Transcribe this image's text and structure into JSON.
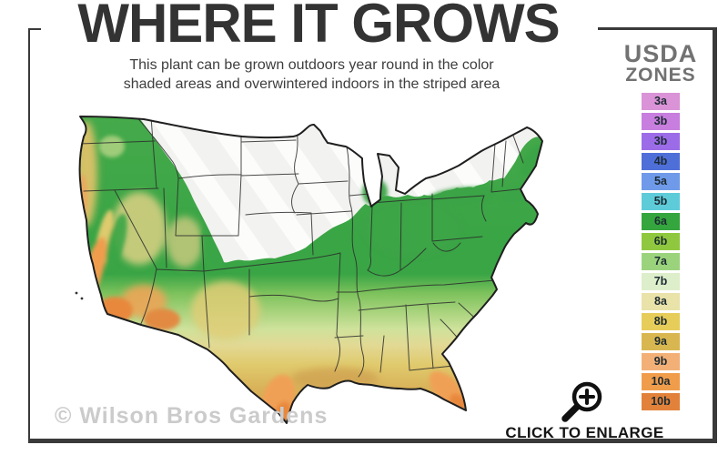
{
  "title": "WHERE IT GROWS",
  "subtitle": {
    "line1": "This plant can be grown outdoors year round in the color",
    "line2": "shaded areas and overwintered indoors in the striped area"
  },
  "legend": {
    "title_line1": "USDA",
    "title_line2": "ZONES",
    "zones": [
      {
        "label": "3a",
        "color": "#d993d6"
      },
      {
        "label": "3b",
        "color": "#c77ede"
      },
      {
        "label": "3b",
        "color": "#9c6ce8"
      },
      {
        "label": "4b",
        "color": "#4f6fd8"
      },
      {
        "label": "5a",
        "color": "#6f9ae9"
      },
      {
        "label": "5b",
        "color": "#5ecbd9"
      },
      {
        "label": "6a",
        "color": "#35a53d"
      },
      {
        "label": "6b",
        "color": "#8fc83e"
      },
      {
        "label": "7a",
        "color": "#9bd37d"
      },
      {
        "label": "7b",
        "color": "#ddeeca"
      },
      {
        "label": "8a",
        "color": "#e9e2a9"
      },
      {
        "label": "8b",
        "color": "#e6cd5a"
      },
      {
        "label": "9a",
        "color": "#d9b750"
      },
      {
        "label": "9b",
        "color": "#f2b077"
      },
      {
        "label": "10a",
        "color": "#f09d4b"
      },
      {
        "label": "10b",
        "color": "#e2823a"
      }
    ]
  },
  "map": {
    "icon": "us-zone-map",
    "striped_area_meaning": "overwinter indoors",
    "shaded_area_meaning": "grows outdoors year round"
  },
  "watermark": "© Wilson Bros Gardens",
  "enlarge": {
    "label": "CLICK TO ENLARGE",
    "icon": "magnifier-plus-icon"
  },
  "colors": {
    "frame": "#3a3a3a",
    "title": "#333333",
    "legend_title": "#727272"
  }
}
